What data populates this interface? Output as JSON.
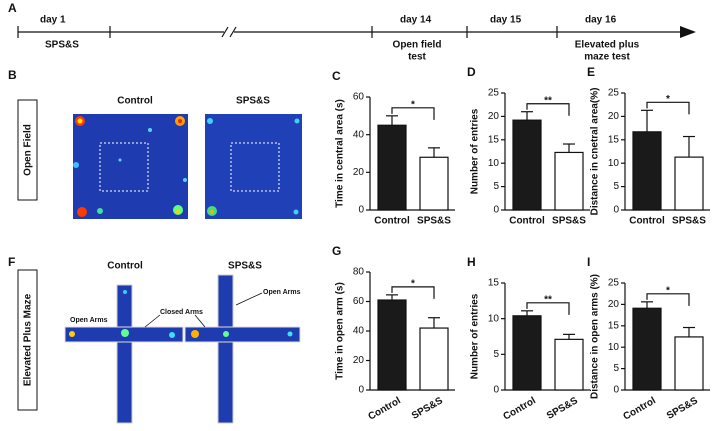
{
  "timeline": {
    "label": "A",
    "days": [
      "day 1",
      "day 14",
      "day 15",
      "day 16"
    ],
    "events": [
      [
        "SPS&S"
      ],
      [
        "Open field",
        "test"
      ],
      [
        "Elevated plus",
        "maze test"
      ]
    ]
  },
  "open_field": {
    "label": "B",
    "side_label": "Open Field",
    "groups": [
      "Control",
      "SPS&S"
    ]
  },
  "plus_maze": {
    "label": "F",
    "side_label": "Elevated Plus Maze",
    "groups": [
      "Control",
      "SPS&S"
    ],
    "annotations": [
      "Open Arms",
      "Closed Arms",
      "Open Arms"
    ]
  },
  "chart_data": [
    {
      "type": "bar",
      "panel": "C",
      "ylabel": "Time in central area (s)",
      "categories": [
        "Control",
        "SPS&S"
      ],
      "values": [
        45,
        28
      ],
      "errors": [
        5,
        5
      ],
      "colors": [
        "#1a1a1a",
        "#ffffff"
      ],
      "ylim": [
        0,
        60
      ],
      "yticks": [
        0,
        20,
        40,
        60
      ],
      "annotation": "*"
    },
    {
      "type": "bar",
      "panel": "D",
      "ylabel": "Number of entries",
      "categories": [
        "Control",
        "SPS&S"
      ],
      "values": [
        19.2,
        12.3
      ],
      "errors": [
        1.8,
        1.8
      ],
      "colors": [
        "#1a1a1a",
        "#ffffff"
      ],
      "ylim": [
        0,
        25
      ],
      "yticks": [
        0,
        5,
        10,
        15,
        20,
        25
      ],
      "annotation": "**"
    },
    {
      "type": "bar",
      "panel": "E",
      "ylabel": "Distance in cnetral area(%)",
      "categories": [
        "Control",
        "SPS&S"
      ],
      "values": [
        16.7,
        11.3
      ],
      "errors": [
        4.6,
        4.4
      ],
      "colors": [
        "#1a1a1a",
        "#ffffff"
      ],
      "ylim": [
        0,
        25
      ],
      "yticks": [
        0,
        5,
        10,
        15,
        20,
        25
      ],
      "annotation": "*"
    },
    {
      "type": "bar",
      "panel": "G",
      "ylabel": "Time in open arm (s)",
      "categories": [
        "Control",
        "SPS&S"
      ],
      "values": [
        61,
        42
      ],
      "errors": [
        3.5,
        7
      ],
      "colors": [
        "#1a1a1a",
        "#ffffff"
      ],
      "ylim": [
        0,
        80
      ],
      "yticks": [
        0,
        20,
        40,
        60,
        80
      ],
      "annotation": "*"
    },
    {
      "type": "bar",
      "panel": "H",
      "ylabel": "Number of entries",
      "categories": [
        "Control",
        "SPS&S"
      ],
      "values": [
        10.4,
        7.1
      ],
      "errors": [
        0.7,
        0.7
      ],
      "colors": [
        "#1a1a1a",
        "#ffffff"
      ],
      "ylim": [
        0,
        15
      ],
      "yticks": [
        0,
        5,
        10,
        15
      ],
      "annotation": "**"
    },
    {
      "type": "bar",
      "panel": "I",
      "ylabel": "Distance in open arms (%)",
      "categories": [
        "Control",
        "SPS&S"
      ],
      "values": [
        19.1,
        12.4
      ],
      "errors": [
        1.5,
        2.2
      ],
      "colors": [
        "#1a1a1a",
        "#ffffff"
      ],
      "ylim": [
        0,
        25
      ],
      "yticks": [
        0,
        5,
        10,
        15,
        20,
        25
      ],
      "annotation": "*"
    }
  ]
}
